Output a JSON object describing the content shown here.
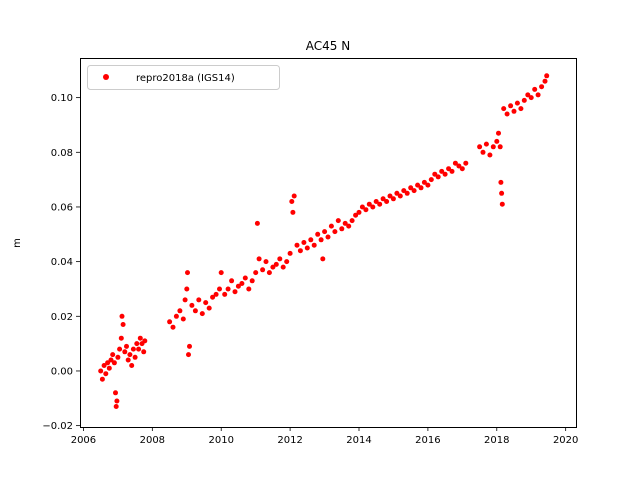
{
  "chart_data": {
    "type": "scatter",
    "title": "AC45 N",
    "xlabel": "",
    "ylabel": "m",
    "xlim": [
      2005.9,
      2020.3
    ],
    "ylim": [
      -0.0205,
      0.1145
    ],
    "xticks": [
      2006,
      2008,
      2010,
      2012,
      2014,
      2016,
      2018,
      2020
    ],
    "xtick_labels": [
      "2006",
      "2008",
      "2010",
      "2012",
      "2014",
      "2016",
      "2018",
      "2020"
    ],
    "yticks": [
      -0.02,
      0.0,
      0.02,
      0.04,
      0.06,
      0.08,
      0.1
    ],
    "ytick_labels": [
      "−0.02",
      "0.00",
      "0.02",
      "0.04",
      "0.06",
      "0.08",
      "0.10"
    ],
    "legend_position": "top-left",
    "series": [
      {
        "name": "repro2018a (IGS14)",
        "color": "#ff0000",
        "marker": "circle",
        "points": [
          [
            2006.5,
            0.0
          ],
          [
            2006.55,
            -0.003
          ],
          [
            2006.6,
            0.002
          ],
          [
            2006.65,
            -0.001
          ],
          [
            2006.7,
            0.003
          ],
          [
            2006.75,
            0.001
          ],
          [
            2006.8,
            0.004
          ],
          [
            2006.85,
            0.006
          ],
          [
            2006.9,
            0.003
          ],
          [
            2006.93,
            -0.008
          ],
          [
            2006.95,
            -0.013
          ],
          [
            2006.97,
            -0.011
          ],
          [
            2007.0,
            0.005
          ],
          [
            2007.05,
            0.008
          ],
          [
            2007.1,
            0.012
          ],
          [
            2007.12,
            0.02
          ],
          [
            2007.15,
            0.017
          ],
          [
            2007.2,
            0.007
          ],
          [
            2007.25,
            0.009
          ],
          [
            2007.3,
            0.004
          ],
          [
            2007.35,
            0.006
          ],
          [
            2007.4,
            0.002
          ],
          [
            2007.45,
            0.008
          ],
          [
            2007.5,
            0.005
          ],
          [
            2007.55,
            0.01
          ],
          [
            2007.6,
            0.008
          ],
          [
            2007.65,
            0.012
          ],
          [
            2007.7,
            0.01
          ],
          [
            2007.75,
            0.007
          ],
          [
            2007.78,
            0.011
          ],
          [
            2008.5,
            0.018
          ],
          [
            2008.6,
            0.016
          ],
          [
            2008.7,
            0.02
          ],
          [
            2008.8,
            0.022
          ],
          [
            2008.9,
            0.019
          ],
          [
            2008.95,
            0.026
          ],
          [
            2009.0,
            0.03
          ],
          [
            2009.02,
            0.036
          ],
          [
            2009.05,
            0.006
          ],
          [
            2009.08,
            0.009
          ],
          [
            2009.15,
            0.024
          ],
          [
            2009.25,
            0.022
          ],
          [
            2009.35,
            0.026
          ],
          [
            2009.45,
            0.021
          ],
          [
            2009.55,
            0.025
          ],
          [
            2009.65,
            0.023
          ],
          [
            2009.75,
            0.027
          ],
          [
            2009.85,
            0.028
          ],
          [
            2009.95,
            0.03
          ],
          [
            2010.0,
            0.036
          ],
          [
            2010.1,
            0.028
          ],
          [
            2010.2,
            0.03
          ],
          [
            2010.3,
            0.033
          ],
          [
            2010.4,
            0.029
          ],
          [
            2010.5,
            0.031
          ],
          [
            2010.6,
            0.032
          ],
          [
            2010.7,
            0.034
          ],
          [
            2010.8,
            0.03
          ],
          [
            2010.9,
            0.033
          ],
          [
            2011.0,
            0.036
          ],
          [
            2011.05,
            0.054
          ],
          [
            2011.1,
            0.041
          ],
          [
            2011.2,
            0.037
          ],
          [
            2011.3,
            0.04
          ],
          [
            2011.4,
            0.036
          ],
          [
            2011.5,
            0.038
          ],
          [
            2011.6,
            0.039
          ],
          [
            2011.7,
            0.041
          ],
          [
            2011.8,
            0.038
          ],
          [
            2011.9,
            0.04
          ],
          [
            2012.0,
            0.043
          ],
          [
            2012.05,
            0.062
          ],
          [
            2012.08,
            0.058
          ],
          [
            2012.12,
            0.064
          ],
          [
            2012.2,
            0.046
          ],
          [
            2012.3,
            0.044
          ],
          [
            2012.4,
            0.047
          ],
          [
            2012.5,
            0.045
          ],
          [
            2012.6,
            0.048
          ],
          [
            2012.7,
            0.046
          ],
          [
            2012.8,
            0.05
          ],
          [
            2012.9,
            0.048
          ],
          [
            2012.95,
            0.041
          ],
          [
            2013.0,
            0.051
          ],
          [
            2013.1,
            0.049
          ],
          [
            2013.2,
            0.053
          ],
          [
            2013.3,
            0.051
          ],
          [
            2013.4,
            0.055
          ],
          [
            2013.5,
            0.052
          ],
          [
            2013.6,
            0.054
          ],
          [
            2013.7,
            0.053
          ],
          [
            2013.8,
            0.055
          ],
          [
            2013.9,
            0.057
          ],
          [
            2014.0,
            0.058
          ],
          [
            2014.1,
            0.06
          ],
          [
            2014.2,
            0.059
          ],
          [
            2014.3,
            0.061
          ],
          [
            2014.4,
            0.06
          ],
          [
            2014.5,
            0.062
          ],
          [
            2014.6,
            0.061
          ],
          [
            2014.7,
            0.063
          ],
          [
            2014.8,
            0.062
          ],
          [
            2014.9,
            0.064
          ],
          [
            2015.0,
            0.063
          ],
          [
            2015.1,
            0.065
          ],
          [
            2015.2,
            0.064
          ],
          [
            2015.3,
            0.066
          ],
          [
            2015.4,
            0.065
          ],
          [
            2015.5,
            0.067
          ],
          [
            2015.6,
            0.066
          ],
          [
            2015.7,
            0.068
          ],
          [
            2015.8,
            0.067
          ],
          [
            2015.9,
            0.069
          ],
          [
            2016.0,
            0.068
          ],
          [
            2016.1,
            0.07
          ],
          [
            2016.2,
            0.072
          ],
          [
            2016.3,
            0.071
          ],
          [
            2016.4,
            0.073
          ],
          [
            2016.5,
            0.072
          ],
          [
            2016.6,
            0.074
          ],
          [
            2016.7,
            0.073
          ],
          [
            2016.8,
            0.076
          ],
          [
            2016.9,
            0.075
          ],
          [
            2017.0,
            0.074
          ],
          [
            2017.1,
            0.076
          ],
          [
            2017.5,
            0.082
          ],
          [
            2017.6,
            0.08
          ],
          [
            2017.7,
            0.083
          ],
          [
            2017.8,
            0.079
          ],
          [
            2017.9,
            0.082
          ],
          [
            2018.0,
            0.084
          ],
          [
            2018.05,
            0.087
          ],
          [
            2018.1,
            0.082
          ],
          [
            2018.12,
            0.069
          ],
          [
            2018.14,
            0.065
          ],
          [
            2018.16,
            0.061
          ],
          [
            2018.2,
            0.096
          ],
          [
            2018.3,
            0.094
          ],
          [
            2018.4,
            0.097
          ],
          [
            2018.5,
            0.095
          ],
          [
            2018.6,
            0.098
          ],
          [
            2018.7,
            0.096
          ],
          [
            2018.8,
            0.099
          ],
          [
            2018.9,
            0.101
          ],
          [
            2019.0,
            0.1
          ],
          [
            2019.1,
            0.103
          ],
          [
            2019.2,
            0.101
          ],
          [
            2019.3,
            0.104
          ],
          [
            2019.4,
            0.106
          ],
          [
            2019.45,
            0.108
          ]
        ]
      }
    ]
  }
}
